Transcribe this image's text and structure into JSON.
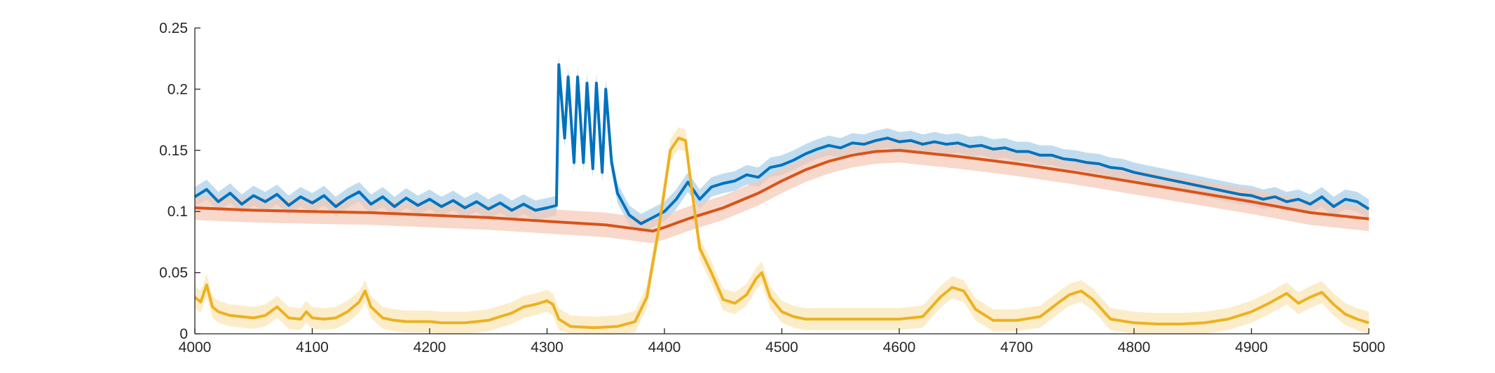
{
  "chart_data": {
    "type": "line",
    "title": "",
    "xlabel": "",
    "ylabel": "",
    "xlim": [
      4000,
      5000
    ],
    "ylim": [
      0,
      0.25
    ],
    "grid": false,
    "legend": "none",
    "x_ticks": [
      {
        "value": 4000,
        "label": "4000"
      },
      {
        "value": 4100,
        "label": "4100"
      },
      {
        "value": 4200,
        "label": "4200"
      },
      {
        "value": 4300,
        "label": "4300"
      },
      {
        "value": 4400,
        "label": "4400"
      },
      {
        "value": 4500,
        "label": "4500"
      },
      {
        "value": 4600,
        "label": "4600"
      },
      {
        "value": 4700,
        "label": "4700"
      },
      {
        "value": 4800,
        "label": "4800"
      },
      {
        "value": 4900,
        "label": "4900"
      },
      {
        "value": 5000,
        "label": "5000"
      }
    ],
    "y_ticks": [
      {
        "value": 0,
        "label": "0"
      },
      {
        "value": 0.05,
        "label": "0.05"
      },
      {
        "value": 0.1,
        "label": "0.1"
      },
      {
        "value": 0.15,
        "label": "0.15"
      },
      {
        "value": 0.2,
        "label": "0.2"
      },
      {
        "value": 0.25,
        "label": "0.25"
      }
    ],
    "series": [
      {
        "color": "#0072bd",
        "band_color": "#a6cde8",
        "points": [
          [
            4000,
            0.112
          ],
          [
            4010,
            0.118
          ],
          [
            4020,
            0.108
          ],
          [
            4030,
            0.115
          ],
          [
            4040,
            0.106
          ],
          [
            4050,
            0.113
          ],
          [
            4060,
            0.108
          ],
          [
            4070,
            0.114
          ],
          [
            4080,
            0.105
          ],
          [
            4090,
            0.112
          ],
          [
            4100,
            0.107
          ],
          [
            4110,
            0.113
          ],
          [
            4120,
            0.104
          ],
          [
            4130,
            0.111
          ],
          [
            4140,
            0.116
          ],
          [
            4150,
            0.106
          ],
          [
            4160,
            0.112
          ],
          [
            4170,
            0.104
          ],
          [
            4180,
            0.111
          ],
          [
            4190,
            0.105
          ],
          [
            4200,
            0.11
          ],
          [
            4210,
            0.104
          ],
          [
            4220,
            0.109
          ],
          [
            4230,
            0.103
          ],
          [
            4240,
            0.108
          ],
          [
            4250,
            0.102
          ],
          [
            4260,
            0.107
          ],
          [
            4270,
            0.101
          ],
          [
            4280,
            0.106
          ],
          [
            4290,
            0.101
          ],
          [
            4300,
            0.103
          ],
          [
            4308,
            0.105
          ],
          [
            4310,
            0.22
          ],
          [
            4315,
            0.16
          ],
          [
            4318,
            0.21
          ],
          [
            4323,
            0.14
          ],
          [
            4326,
            0.21
          ],
          [
            4331,
            0.14
          ],
          [
            4334,
            0.205
          ],
          [
            4339,
            0.135
          ],
          [
            4342,
            0.205
          ],
          [
            4347,
            0.132
          ],
          [
            4350,
            0.2
          ],
          [
            4355,
            0.14
          ],
          [
            4360,
            0.115
          ],
          [
            4370,
            0.097
          ],
          [
            4380,
            0.09
          ],
          [
            4390,
            0.095
          ],
          [
            4400,
            0.1
          ],
          [
            4410,
            0.11
          ],
          [
            4420,
            0.124
          ],
          [
            4430,
            0.11
          ],
          [
            4440,
            0.12
          ],
          [
            4450,
            0.123
          ],
          [
            4460,
            0.125
          ],
          [
            4470,
            0.13
          ],
          [
            4480,
            0.128
          ],
          [
            4490,
            0.136
          ],
          [
            4500,
            0.138
          ],
          [
            4510,
            0.142
          ],
          [
            4520,
            0.147
          ],
          [
            4530,
            0.151
          ],
          [
            4540,
            0.154
          ],
          [
            4550,
            0.152
          ],
          [
            4560,
            0.156
          ],
          [
            4570,
            0.155
          ],
          [
            4580,
            0.158
          ],
          [
            4590,
            0.16
          ],
          [
            4600,
            0.157
          ],
          [
            4610,
            0.158
          ],
          [
            4620,
            0.155
          ],
          [
            4630,
            0.157
          ],
          [
            4640,
            0.155
          ],
          [
            4650,
            0.156
          ],
          [
            4660,
            0.153
          ],
          [
            4670,
            0.154
          ],
          [
            4680,
            0.151
          ],
          [
            4690,
            0.152
          ],
          [
            4700,
            0.149
          ],
          [
            4710,
            0.149
          ],
          [
            4720,
            0.146
          ],
          [
            4730,
            0.146
          ],
          [
            4740,
            0.143
          ],
          [
            4750,
            0.142
          ],
          [
            4760,
            0.14
          ],
          [
            4770,
            0.139
          ],
          [
            4780,
            0.136
          ],
          [
            4790,
            0.135
          ],
          [
            4800,
            0.132
          ],
          [
            4810,
            0.13
          ],
          [
            4820,
            0.128
          ],
          [
            4830,
            0.126
          ],
          [
            4840,
            0.124
          ],
          [
            4850,
            0.122
          ],
          [
            4860,
            0.12
          ],
          [
            4870,
            0.118
          ],
          [
            4880,
            0.116
          ],
          [
            4890,
            0.114
          ],
          [
            4900,
            0.113
          ],
          [
            4910,
            0.11
          ],
          [
            4920,
            0.112
          ],
          [
            4930,
            0.108
          ],
          [
            4940,
            0.11
          ],
          [
            4950,
            0.106
          ],
          [
            4960,
            0.112
          ],
          [
            4970,
            0.104
          ],
          [
            4980,
            0.11
          ],
          [
            4990,
            0.108
          ],
          [
            5000,
            0.102
          ]
        ],
        "band_halfwidth": 0.008
      },
      {
        "color": "#d95319",
        "band_color": "#f4c7b5",
        "points": [
          [
            4000,
            0.103
          ],
          [
            4050,
            0.101
          ],
          [
            4100,
            0.1
          ],
          [
            4150,
            0.099
          ],
          [
            4200,
            0.097
          ],
          [
            4250,
            0.095
          ],
          [
            4300,
            0.092
          ],
          [
            4350,
            0.089
          ],
          [
            4390,
            0.084
          ],
          [
            4400,
            0.087
          ],
          [
            4420,
            0.094
          ],
          [
            4450,
            0.103
          ],
          [
            4480,
            0.115
          ],
          [
            4500,
            0.125
          ],
          [
            4520,
            0.134
          ],
          [
            4540,
            0.141
          ],
          [
            4560,
            0.146
          ],
          [
            4580,
            0.149
          ],
          [
            4600,
            0.15
          ],
          [
            4620,
            0.148
          ],
          [
            4650,
            0.145
          ],
          [
            4700,
            0.139
          ],
          [
            4750,
            0.132
          ],
          [
            4800,
            0.124
          ],
          [
            4850,
            0.116
          ],
          [
            4900,
            0.108
          ],
          [
            4950,
            0.099
          ],
          [
            5000,
            0.094
          ]
        ],
        "band_halfwidth": 0.01
      },
      {
        "color": "#edb120",
        "band_color": "#fbe6b4",
        "points": [
          [
            4000,
            0.03
          ],
          [
            4005,
            0.026
          ],
          [
            4010,
            0.04
          ],
          [
            4015,
            0.022
          ],
          [
            4020,
            0.018
          ],
          [
            4030,
            0.015
          ],
          [
            4040,
            0.014
          ],
          [
            4050,
            0.013
          ],
          [
            4060,
            0.015
          ],
          [
            4070,
            0.022
          ],
          [
            4080,
            0.013
          ],
          [
            4090,
            0.012
          ],
          [
            4095,
            0.018
          ],
          [
            4100,
            0.013
          ],
          [
            4110,
            0.012
          ],
          [
            4120,
            0.013
          ],
          [
            4130,
            0.018
          ],
          [
            4140,
            0.026
          ],
          [
            4145,
            0.035
          ],
          [
            4150,
            0.022
          ],
          [
            4160,
            0.013
          ],
          [
            4170,
            0.011
          ],
          [
            4180,
            0.01
          ],
          [
            4190,
            0.01
          ],
          [
            4200,
            0.01
          ],
          [
            4210,
            0.009
          ],
          [
            4220,
            0.009
          ],
          [
            4230,
            0.009
          ],
          [
            4240,
            0.01
          ],
          [
            4250,
            0.011
          ],
          [
            4260,
            0.014
          ],
          [
            4270,
            0.017
          ],
          [
            4280,
            0.022
          ],
          [
            4290,
            0.024
          ],
          [
            4300,
            0.027
          ],
          [
            4305,
            0.024
          ],
          [
            4310,
            0.012
          ],
          [
            4320,
            0.006
          ],
          [
            4340,
            0.005
          ],
          [
            4360,
            0.006
          ],
          [
            4375,
            0.01
          ],
          [
            4385,
            0.03
          ],
          [
            4395,
            0.085
          ],
          [
            4405,
            0.15
          ],
          [
            4412,
            0.16
          ],
          [
            4418,
            0.158
          ],
          [
            4423,
            0.12
          ],
          [
            4430,
            0.07
          ],
          [
            4440,
            0.05
          ],
          [
            4450,
            0.028
          ],
          [
            4460,
            0.025
          ],
          [
            4470,
            0.032
          ],
          [
            4478,
            0.045
          ],
          [
            4483,
            0.05
          ],
          [
            4490,
            0.03
          ],
          [
            4500,
            0.018
          ],
          [
            4510,
            0.014
          ],
          [
            4520,
            0.012
          ],
          [
            4540,
            0.012
          ],
          [
            4560,
            0.012
          ],
          [
            4580,
            0.012
          ],
          [
            4600,
            0.012
          ],
          [
            4620,
            0.014
          ],
          [
            4635,
            0.03
          ],
          [
            4645,
            0.038
          ],
          [
            4655,
            0.035
          ],
          [
            4665,
            0.02
          ],
          [
            4680,
            0.011
          ],
          [
            4700,
            0.011
          ],
          [
            4720,
            0.014
          ],
          [
            4735,
            0.025
          ],
          [
            4745,
            0.032
          ],
          [
            4755,
            0.035
          ],
          [
            4765,
            0.028
          ],
          [
            4780,
            0.012
          ],
          [
            4800,
            0.009
          ],
          [
            4820,
            0.008
          ],
          [
            4840,
            0.008
          ],
          [
            4860,
            0.009
          ],
          [
            4880,
            0.012
          ],
          [
            4900,
            0.018
          ],
          [
            4915,
            0.025
          ],
          [
            4930,
            0.033
          ],
          [
            4940,
            0.025
          ],
          [
            4950,
            0.03
          ],
          [
            4960,
            0.034
          ],
          [
            4970,
            0.024
          ],
          [
            4980,
            0.016
          ],
          [
            4990,
            0.012
          ],
          [
            5000,
            0.009
          ]
        ],
        "band_halfwidth": 0.009
      }
    ]
  }
}
